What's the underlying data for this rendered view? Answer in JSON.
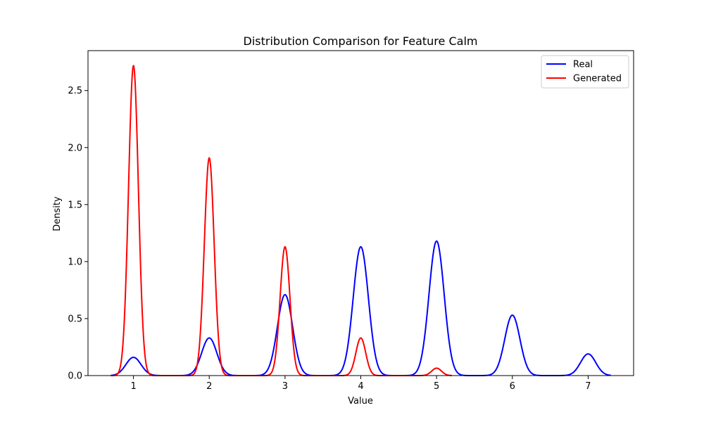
{
  "chart_data": {
    "type": "line",
    "title": "Distribution Comparison for Feature Calm",
    "xlabel": "Value",
    "ylabel": "Density",
    "xlim": [
      0.4,
      7.6
    ],
    "ylim": [
      0,
      2.85
    ],
    "xticks": [
      1,
      2,
      3,
      4,
      5,
      6,
      7
    ],
    "yticks": [
      "0.0",
      "0.5",
      "1.0",
      "1.5",
      "2.0",
      "2.5"
    ],
    "legend": {
      "placement": "top-right"
    },
    "grid": false,
    "series": [
      {
        "name": "Real",
        "color": "#0000ff",
        "x_range": [
          0.7,
          7.3
        ],
        "sigma": 0.1,
        "peaks": [
          {
            "x": 1,
            "y": 0.16
          },
          {
            "x": 2,
            "y": 0.33
          },
          {
            "x": 3,
            "y": 0.71
          },
          {
            "x": 4,
            "y": 1.13
          },
          {
            "x": 5,
            "y": 1.18
          },
          {
            "x": 6,
            "y": 0.53
          },
          {
            "x": 7,
            "y": 0.19
          }
        ]
      },
      {
        "name": "Generated",
        "color": "#ff0000",
        "x_range": [
          0.7,
          5.2
        ],
        "sigma": 0.065,
        "peaks": [
          {
            "x": 1,
            "y": 2.72
          },
          {
            "x": 2,
            "y": 1.91
          },
          {
            "x": 3,
            "y": 1.13
          },
          {
            "x": 4,
            "y": 0.33
          },
          {
            "x": 5,
            "y": 0.065
          }
        ]
      }
    ]
  }
}
